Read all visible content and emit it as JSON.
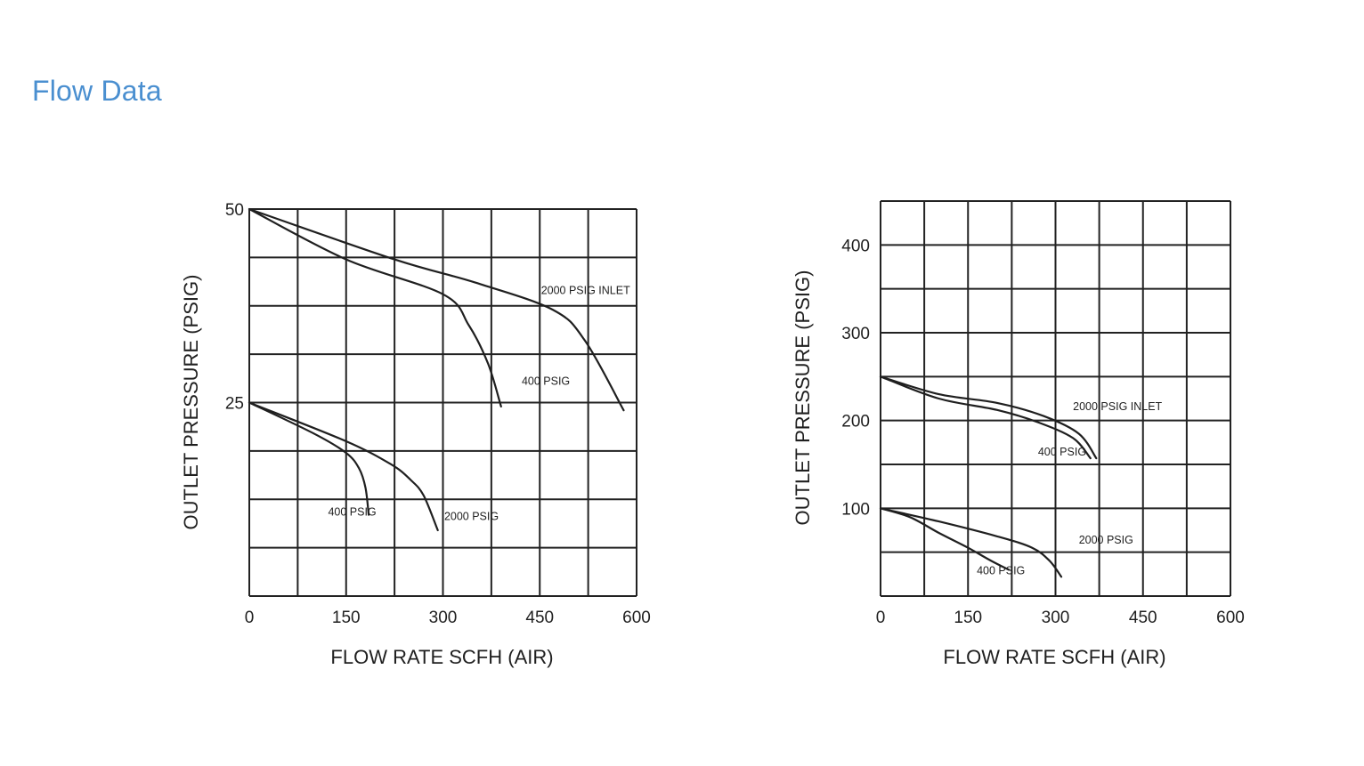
{
  "page": {
    "title": "Flow Data"
  },
  "colors": {
    "title": "#4a8fd0",
    "ink": "#1f1f1f",
    "grid": "#222222"
  },
  "chart_data": [
    {
      "type": "line",
      "title": "",
      "xlabel": "FLOW  RATE SCFH (AIR)",
      "ylabel": "OUTLET  PRESSURE (PSIG)",
      "xlim": [
        0,
        600
      ],
      "ylim": [
        0,
        50
      ],
      "xticks": [
        0,
        150,
        300,
        450,
        600
      ],
      "xtick_labels": [
        "0",
        "150",
        "300",
        "450",
        "600"
      ],
      "yticks": [
        25,
        50
      ],
      "ytick_labels": [
        "25",
        "50"
      ],
      "grid": {
        "x_step": 75,
        "y_step": 6.25
      },
      "series": [
        {
          "name": "2000 PSIG INLET",
          "x": [
            0,
            225,
            350,
            470,
            520,
            580
          ],
          "y": [
            50,
            43.5,
            40.5,
            37,
            33,
            24
          ]
        },
        {
          "name": "400 PSIG",
          "x": [
            0,
            150,
            300,
            340,
            370,
            390
          ],
          "y": [
            50,
            43.5,
            39,
            35,
            30,
            24.5
          ]
        },
        {
          "name": "2000 PSIG",
          "x": [
            0,
            150,
            220,
            250,
            270,
            292
          ],
          "y": [
            25,
            20,
            17,
            15,
            13,
            8.5
          ]
        },
        {
          "name": "400 PSIG",
          "x": [
            0,
            100,
            150,
            170,
            180,
            185
          ],
          "y": [
            25,
            21,
            18.5,
            16.5,
            14,
            10.5
          ]
        }
      ],
      "annotations": [
        {
          "text": "2000 PSIG INLET",
          "x": 452,
          "y": 39
        },
        {
          "text": "400 PSIG",
          "x": 422,
          "y": 27.3
        },
        {
          "text": "2000 PSIG",
          "x": 302,
          "y": 9.8
        },
        {
          "text": "400 PSIG",
          "x": 122,
          "y": 10.4
        }
      ]
    },
    {
      "type": "line",
      "title": "",
      "xlabel": "FLOW  RATE SCFH (AIR)",
      "ylabel": "OUTLET  PRESSURE (PSIG)",
      "xlim": [
        0,
        600
      ],
      "ylim": [
        0,
        450
      ],
      "xticks": [
        0,
        150,
        300,
        450,
        600
      ],
      "xtick_labels": [
        "0",
        "150",
        "300",
        "450",
        "600"
      ],
      "yticks": [
        100,
        200,
        300,
        400
      ],
      "ytick_labels": [
        "100",
        "200",
        "300",
        "400"
      ],
      "grid": {
        "x_step": 75,
        "y_step": 50
      },
      "series": [
        {
          "name": "2000 PSIG INLET",
          "x": [
            0,
            100,
            200,
            280,
            340,
            370
          ],
          "y": [
            250,
            230,
            220,
            205,
            185,
            157
          ]
        },
        {
          "name": "400 PSIG",
          "x": [
            0,
            100,
            200,
            270,
            330,
            360
          ],
          "y": [
            250,
            225,
            212,
            198,
            180,
            157
          ]
        },
        {
          "name": "2000 PSIG",
          "x": [
            0,
            100,
            200,
            260,
            290,
            310
          ],
          "y": [
            100,
            85,
            68,
            55,
            40,
            22
          ]
        },
        {
          "name": "400 PSIG",
          "x": [
            0,
            50,
            100,
            150,
            190,
            220
          ],
          "y": [
            100,
            90,
            72,
            55,
            40,
            30
          ]
        }
      ],
      "annotations": [
        {
          "text": "2000 PSIG INLET",
          "x": 330,
          "y": 212
        },
        {
          "text": "400 PSIG",
          "x": 270,
          "y": 160
        },
        {
          "text": "2000 PSIG",
          "x": 340,
          "y": 60
        },
        {
          "text": "400 PSIG",
          "x": 165,
          "y": 25
        }
      ]
    }
  ]
}
